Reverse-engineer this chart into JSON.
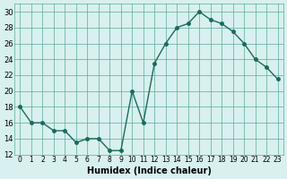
{
  "x": [
    0,
    1,
    2,
    3,
    4,
    5,
    6,
    7,
    8,
    9,
    10,
    11,
    12,
    13,
    14,
    15,
    16,
    17,
    18,
    19,
    20,
    21,
    22,
    23
  ],
  "y": [
    18,
    16,
    16,
    15,
    15,
    13.5,
    14,
    14,
    12.5,
    12.5,
    20,
    16,
    23.5,
    26,
    28,
    28.5,
    30,
    29,
    28.5,
    27.5,
    26,
    24,
    23,
    21.5
  ],
  "line_color": "#1a6b5a",
  "marker_color": "#1a6b5a",
  "bg_color": "#d8f0ef",
  "grid_color": "#5aaa99",
  "xlabel": "Humidex (Indice chaleur)",
  "xlim": [
    -0.5,
    23.5
  ],
  "ylim": [
    12,
    31
  ],
  "yticks": [
    12,
    14,
    16,
    18,
    20,
    22,
    24,
    26,
    28,
    30
  ],
  "xticks": [
    0,
    1,
    2,
    3,
    4,
    5,
    6,
    7,
    8,
    9,
    10,
    11,
    12,
    13,
    14,
    15,
    16,
    17,
    18,
    19,
    20,
    21,
    22,
    23
  ]
}
